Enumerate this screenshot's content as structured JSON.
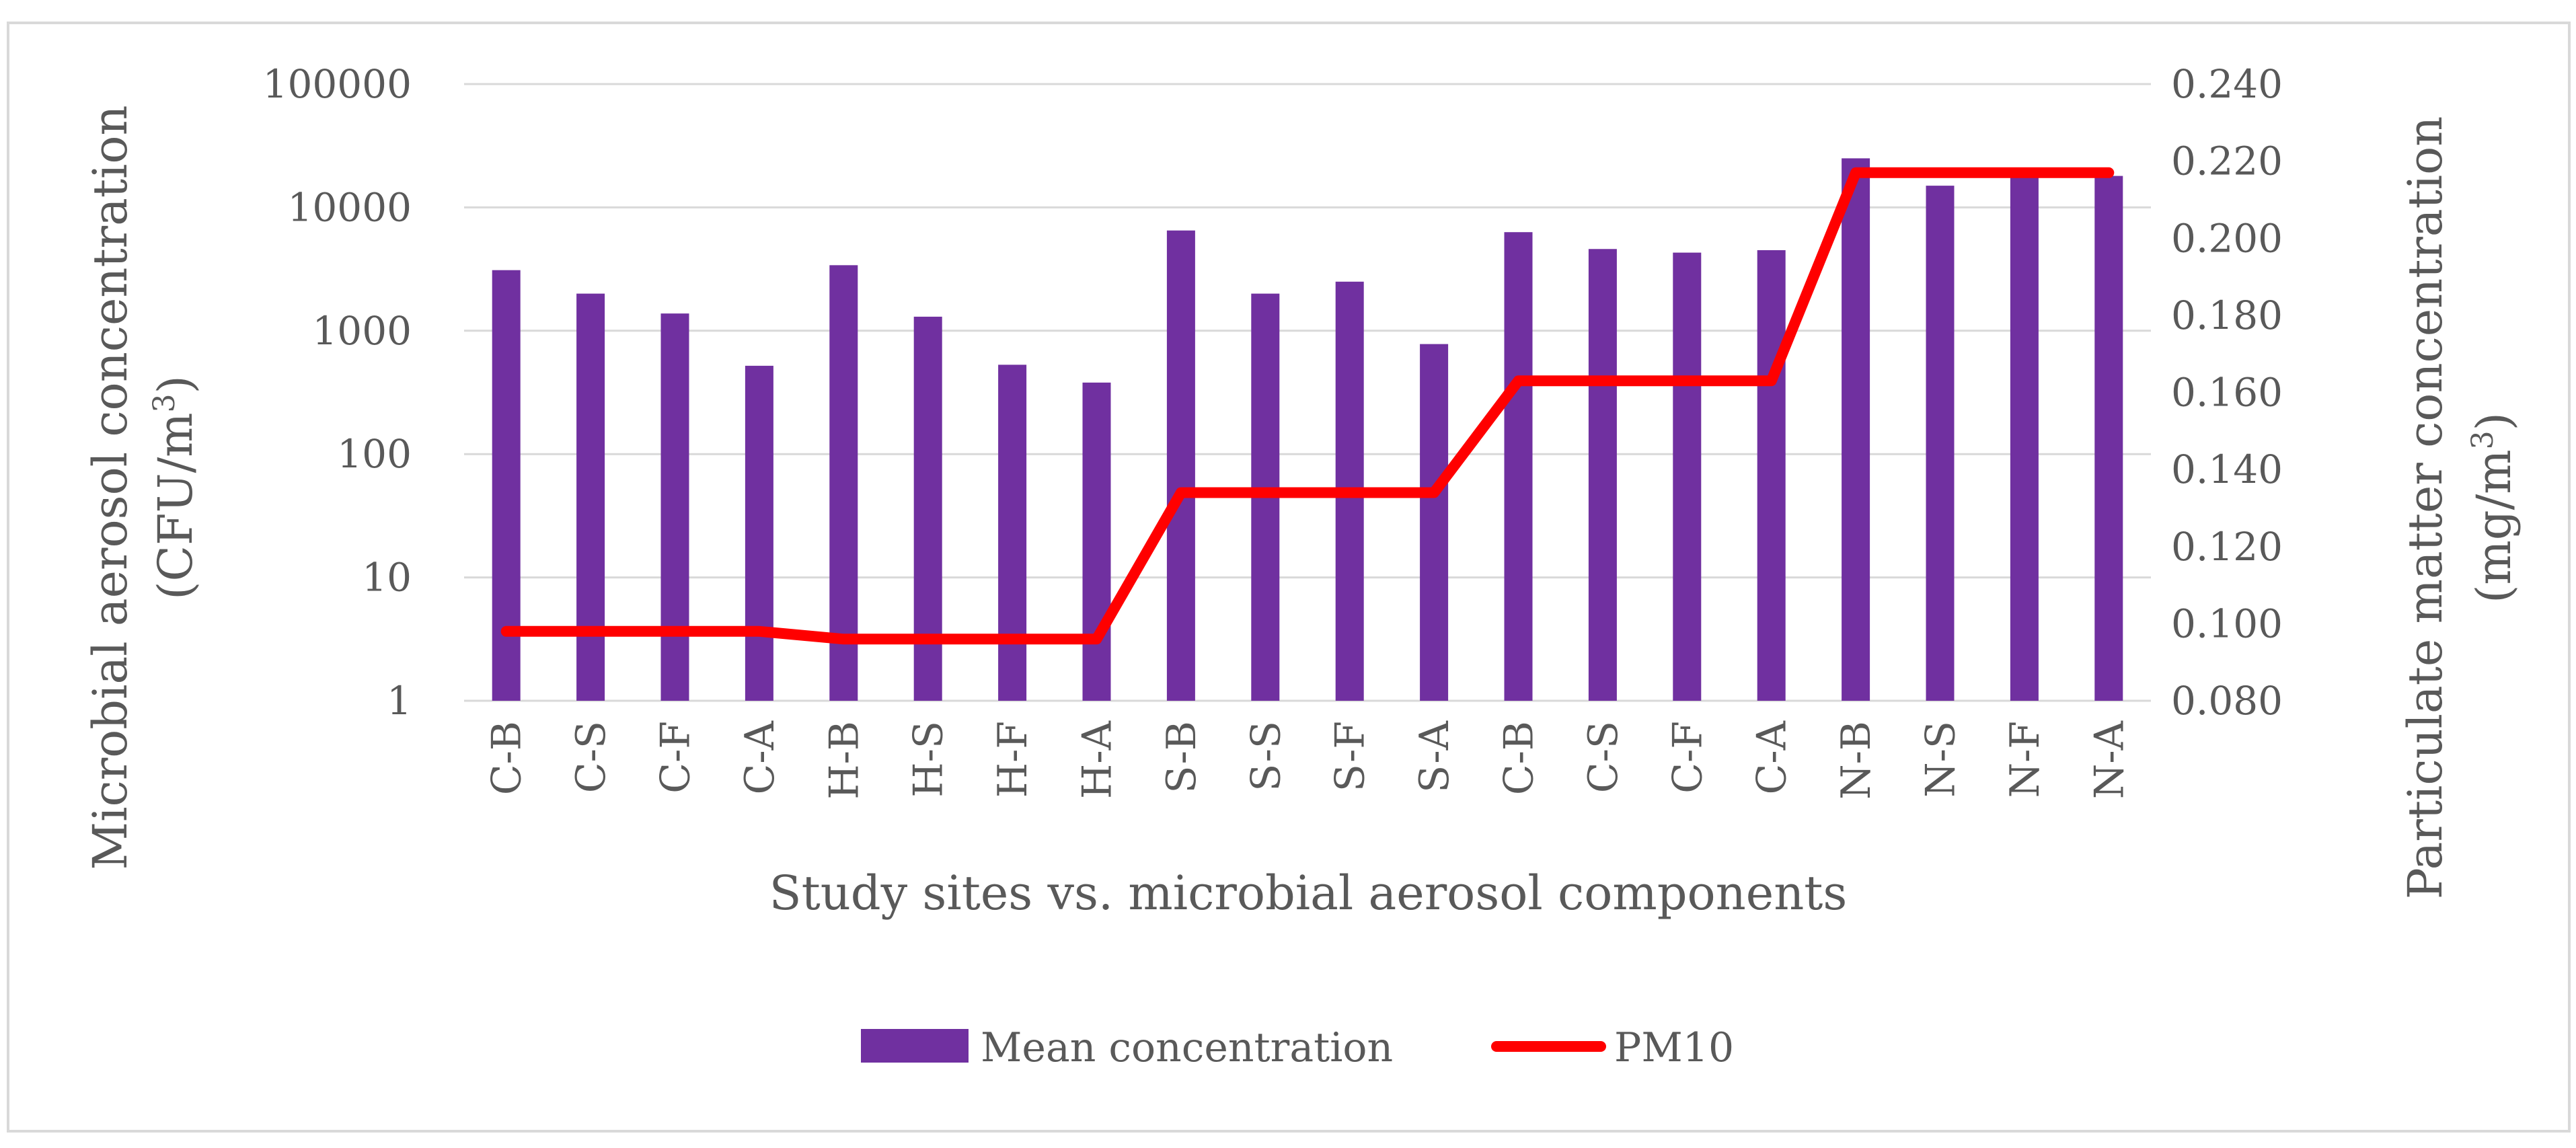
{
  "chart_data": {
    "type": "bar",
    "categories": [
      "C-B",
      "C-S",
      "C-F",
      "C-A",
      "H-B",
      "H-S",
      "H-F",
      "H-A",
      "S-B",
      "S-S",
      "S-F",
      "S-A",
      "C-B",
      "C-S",
      "C-F",
      "C-A",
      "N-B",
      "N-S",
      "N-F",
      "N-A"
    ],
    "series": [
      {
        "name": "Mean concentration",
        "kind": "bar",
        "axis": "left",
        "color": "#7030A0",
        "values": [
          3100,
          2000,
          1380,
          520,
          3400,
          1300,
          530,
          380,
          6500,
          2000,
          2500,
          780,
          6300,
          4600,
          4300,
          4500,
          25000,
          15000,
          21000,
          18000
        ]
      },
      {
        "name": "PM10",
        "kind": "line",
        "axis": "right",
        "color": "#FF0000",
        "values": [
          0.098,
          0.098,
          0.098,
          0.098,
          0.096,
          0.096,
          0.096,
          0.096,
          0.134,
          0.134,
          0.134,
          0.134,
          0.163,
          0.163,
          0.163,
          0.163,
          0.217,
          0.217,
          0.217,
          0.217
        ]
      }
    ],
    "xlabel": "Study sites vs. microbial aerosol components",
    "ylabel_left": {
      "line1": "Microbial aerosol concentration",
      "line2_prefix": "(CFU/m",
      "line2_sup": "3",
      "line2_suffix": ")"
    },
    "ylabel_right": {
      "line1": "Particulate matter concentration",
      "line2_prefix": "(mg/m",
      "line2_sup": "3",
      "line2_suffix": ")"
    },
    "y_left": {
      "scale": "log",
      "ylim": [
        1,
        100000
      ],
      "tick_labels": [
        "1",
        "10",
        "100",
        "1000",
        "10000",
        "100000"
      ]
    },
    "y_right": {
      "scale": "linear",
      "ylim": [
        0.08,
        0.24
      ],
      "tick_labels": [
        "0.080",
        "0.100",
        "0.120",
        "0.140",
        "0.160",
        "0.180",
        "0.200",
        "0.220",
        "0.240"
      ]
    },
    "grid": true,
    "legend": {
      "position": "bottom-center",
      "entries": [
        "Mean concentration",
        "PM10"
      ]
    }
  }
}
